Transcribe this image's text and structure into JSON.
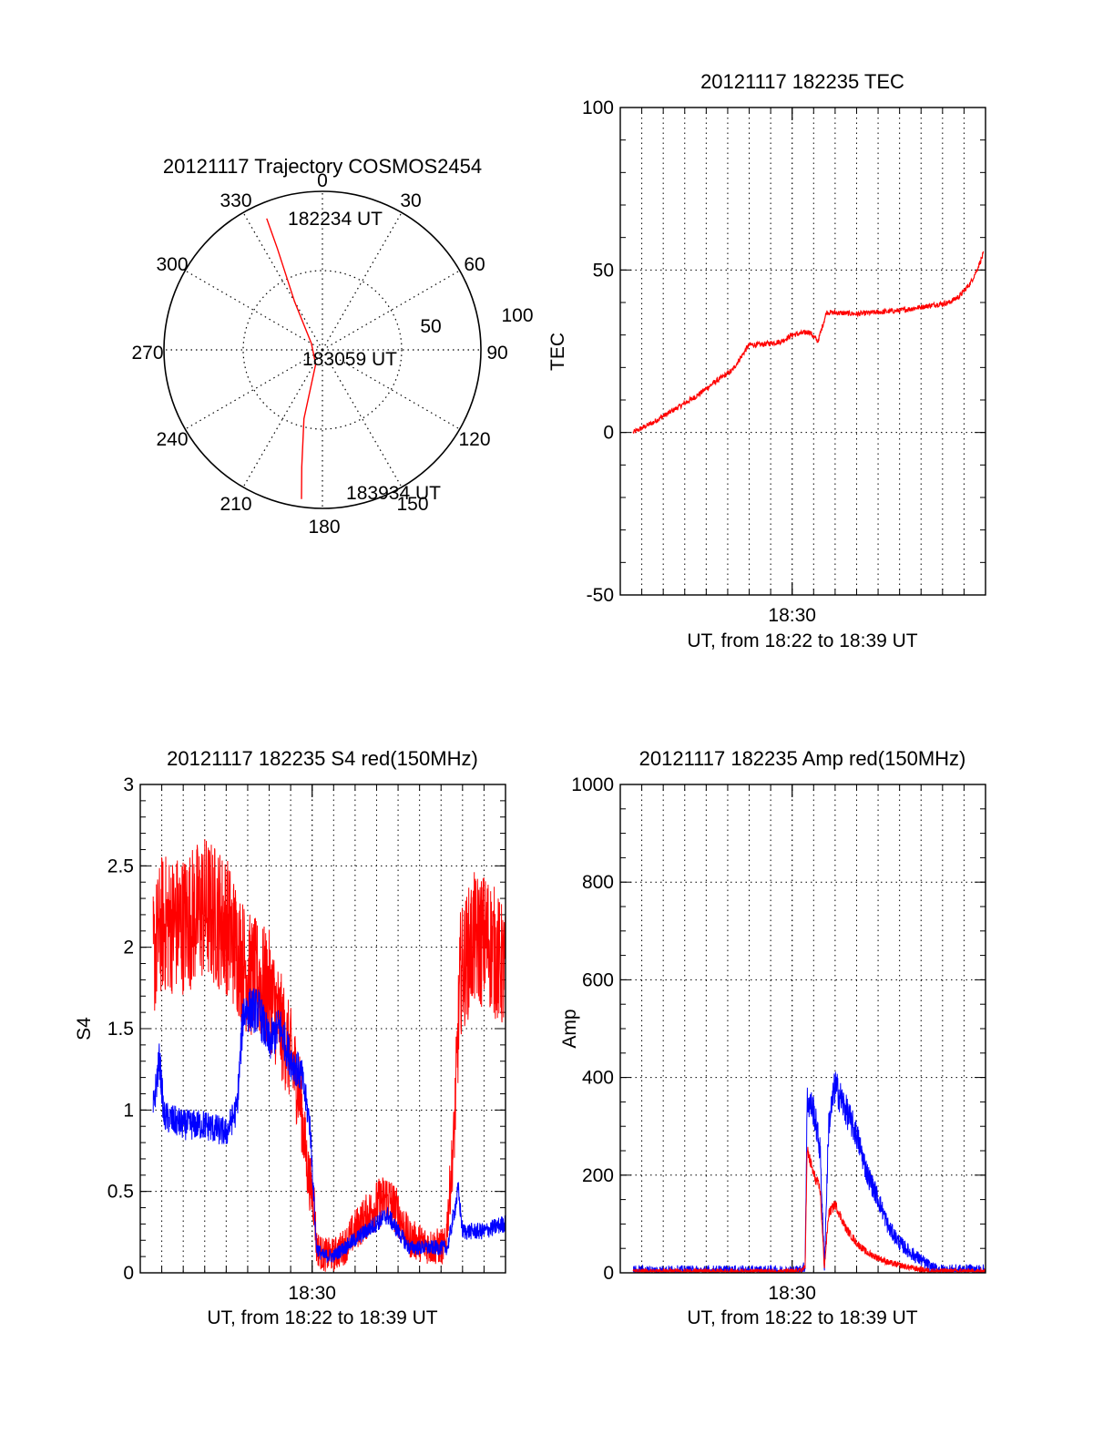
{
  "colors": {
    "series_red": "#ff0000",
    "series_blue": "#0000ff",
    "axis": "#000000",
    "grid": "#000000"
  },
  "chart_data": [
    {
      "type": "polar",
      "title": "20121117 Trajectory COSMOS2454",
      "angle_labels": [
        "0",
        "30",
        "60",
        "90",
        "120",
        "150",
        "180",
        "210",
        "240",
        "270",
        "300",
        "330"
      ],
      "radial_labels": [
        "50",
        "100"
      ],
      "rmax": 100,
      "grid": true,
      "series": [
        {
          "color": "#ff0000",
          "points": [
            [
              337,
              90
            ],
            [
              336,
              70
            ],
            [
              330,
              35
            ],
            [
              300,
              8
            ],
            [
              205,
              10
            ],
            [
              195,
              45
            ],
            [
              190,
              75
            ],
            [
              188,
              95
            ]
          ]
        }
      ],
      "annotations": [
        {
          "text": "182234 UT",
          "az": 5,
          "r": 83
        },
        {
          "text": "183059 UT",
          "az": 100,
          "r": 20
        },
        {
          "text": "183934 UT",
          "az": 168,
          "r": 93
        }
      ]
    },
    {
      "type": "line",
      "title": "20121117 182235 TEC",
      "ylabel": "TEC",
      "xlabel": "UT, from 18:22 to 18:39 UT",
      "xtick_labels": [
        {
          "t": 30.0,
          "label": "18:30"
        }
      ],
      "xlim": [
        22.0,
        39.0
      ],
      "ylim": [
        -50,
        100
      ],
      "yticks": [
        -50,
        0,
        50,
        100
      ],
      "grid": true,
      "series": [
        {
          "color": "#ff0000",
          "noise": 0.8,
          "points": [
            [
              22.6,
              0
            ],
            [
              23.5,
              3
            ],
            [
              24.5,
              7
            ],
            [
              25.5,
              11
            ],
            [
              26.5,
              16
            ],
            [
              27.2,
              19
            ],
            [
              27.6,
              23
            ],
            [
              28.0,
              27
            ],
            [
              28.5,
              27
            ],
            [
              29.5,
              28
            ],
            [
              30.0,
              30
            ],
            [
              30.8,
              31
            ],
            [
              31.2,
              28
            ],
            [
              31.6,
              37
            ],
            [
              33,
              36.5
            ],
            [
              35,
              37.5
            ],
            [
              37.3,
              40
            ],
            [
              37.8,
              42
            ],
            [
              38.3,
              46
            ],
            [
              38.6,
              50
            ],
            [
              38.9,
              55
            ]
          ]
        }
      ]
    },
    {
      "type": "line",
      "title": "20121117 182235 S4 red(150MHz)",
      "ylabel": "S4",
      "xlabel": "UT, from 18:22 to 18:39 UT",
      "xtick_labels": [
        {
          "t": 30.0,
          "label": "18:30"
        }
      ],
      "xlim": [
        22.0,
        39.0
      ],
      "ylim": [
        0,
        3
      ],
      "yticks": [
        0,
        0.5,
        1,
        1.5,
        2,
        2.5,
        3
      ],
      "ytick_labels": [
        "0",
        "0.5",
        "1",
        "1.5",
        "2",
        "2.5",
        "3"
      ],
      "grid": true,
      "series": [
        {
          "color": "#ff0000",
          "noise": 0.45,
          "points": [
            [
              22.6,
              1.9
            ],
            [
              23.0,
              2.1
            ],
            [
              24.0,
              2.1
            ],
            [
              25.0,
              2.2
            ],
            [
              26.0,
              2.1
            ],
            [
              27.0,
              1.8
            ],
            [
              28.0,
              1.7
            ],
            [
              29.0,
              1.3
            ],
            [
              29.4,
              1.1
            ],
            [
              29.8,
              0.6
            ],
            [
              30.1,
              0.4
            ],
            [
              30.2,
              0.15
            ],
            [
              30.5,
              0.1
            ],
            [
              31.0,
              0.1
            ],
            [
              31.5,
              0.15
            ],
            [
              32.0,
              0.25
            ],
            [
              33.0,
              0.4
            ],
            [
              33.5,
              0.45
            ],
            [
              34.0,
              0.35
            ],
            [
              34.5,
              0.2
            ],
            [
              35.5,
              0.15
            ],
            [
              36.2,
              0.15
            ],
            [
              36.6,
              0.8
            ],
            [
              36.9,
              1.8
            ],
            [
              37.5,
              2.0
            ],
            [
              38.2,
              2.0
            ],
            [
              39.0,
              1.8
            ]
          ]
        },
        {
          "color": "#0000ff",
          "noise": 0.18,
          "points": [
            [
              22.6,
              1.0
            ],
            [
              22.9,
              1.3
            ],
            [
              23.1,
              0.95
            ],
            [
              24.0,
              0.9
            ],
            [
              25.0,
              0.9
            ],
            [
              26.0,
              0.85
            ],
            [
              26.5,
              1.0
            ],
            [
              26.8,
              1.6
            ],
            [
              27.5,
              1.6
            ],
            [
              28.0,
              1.4
            ],
            [
              28.5,
              1.5
            ],
            [
              29.0,
              1.3
            ],
            [
              29.5,
              1.2
            ],
            [
              29.9,
              0.9
            ],
            [
              30.2,
              0.15
            ],
            [
              30.5,
              0.1
            ],
            [
              31.0,
              0.1
            ],
            [
              31.5,
              0.15
            ],
            [
              32.0,
              0.2
            ],
            [
              33.0,
              0.3
            ],
            [
              33.5,
              0.35
            ],
            [
              34.0,
              0.25
            ],
            [
              34.5,
              0.15
            ],
            [
              35.5,
              0.15
            ],
            [
              36.3,
              0.15
            ],
            [
              36.8,
              0.5
            ],
            [
              37.0,
              0.25
            ],
            [
              38.0,
              0.25
            ],
            [
              39.0,
              0.3
            ]
          ]
        }
      ]
    },
    {
      "type": "line",
      "title": "20121117 182235 Amp red(150MHz)",
      "ylabel": "Amp",
      "xlabel": "UT, from 18:22 to 18:39 UT",
      "xtick_labels": [
        {
          "t": 30.0,
          "label": "18:30"
        }
      ],
      "xlim": [
        22.0,
        39.0
      ],
      "ylim": [
        0,
        1000
      ],
      "yticks": [
        0,
        200,
        400,
        600,
        800,
        1000
      ],
      "grid": true,
      "series": [
        {
          "color": "#0000ff",
          "noise": 60,
          "points": [
            [
              22.6,
              2
            ],
            [
              30.3,
              2
            ],
            [
              30.6,
              10
            ],
            [
              30.7,
              350
            ],
            [
              31.0,
              330
            ],
            [
              31.3,
              250
            ],
            [
              31.5,
              10
            ],
            [
              31.7,
              300
            ],
            [
              32.0,
              380
            ],
            [
              32.5,
              330
            ],
            [
              33.0,
              280
            ],
            [
              33.5,
              200
            ],
            [
              34.0,
              150
            ],
            [
              34.5,
              90
            ],
            [
              35.0,
              60
            ],
            [
              35.5,
              40
            ],
            [
              36.0,
              25
            ],
            [
              36.5,
              8
            ],
            [
              37.0,
              4
            ],
            [
              39.0,
              4
            ]
          ]
        },
        {
          "color": "#ff0000",
          "noise": 30,
          "points": [
            [
              22.6,
              2
            ],
            [
              30.3,
              2
            ],
            [
              30.6,
              10
            ],
            [
              30.7,
              250
            ],
            [
              31.0,
              200
            ],
            [
              31.3,
              170
            ],
            [
              31.5,
              10
            ],
            [
              31.7,
              120
            ],
            [
              32.0,
              140
            ],
            [
              32.5,
              90
            ],
            [
              33.0,
              60
            ],
            [
              33.5,
              40
            ],
            [
              34.0,
              30
            ],
            [
              34.5,
              20
            ],
            [
              35.0,
              15
            ],
            [
              35.5,
              10
            ],
            [
              36.0,
              6
            ],
            [
              36.5,
              3
            ],
            [
              39.0,
              2
            ]
          ]
        }
      ]
    }
  ]
}
